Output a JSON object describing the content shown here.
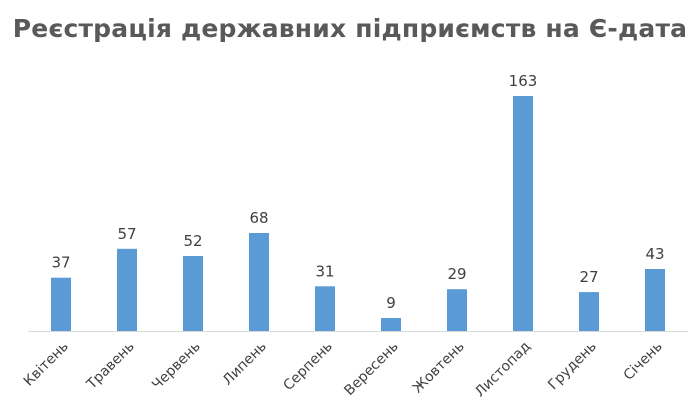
{
  "chart_data": {
    "type": "bar",
    "title": "Реєстрація державних підприємств на Є-дата",
    "categories": [
      "Квітень",
      "Травень",
      "Червень",
      "Липень",
      "Серпень",
      "Вересень",
      "Жовтень",
      "Листопад",
      "Грудень",
      "Січень"
    ],
    "values": [
      37,
      57,
      52,
      68,
      31,
      9,
      29,
      163,
      27,
      43
    ],
    "xlabel": "",
    "ylabel": "",
    "ylim": [
      0,
      180
    ],
    "grid": false,
    "legend": "none",
    "bar_color": "#5b9bd5",
    "data_labels": true
  }
}
